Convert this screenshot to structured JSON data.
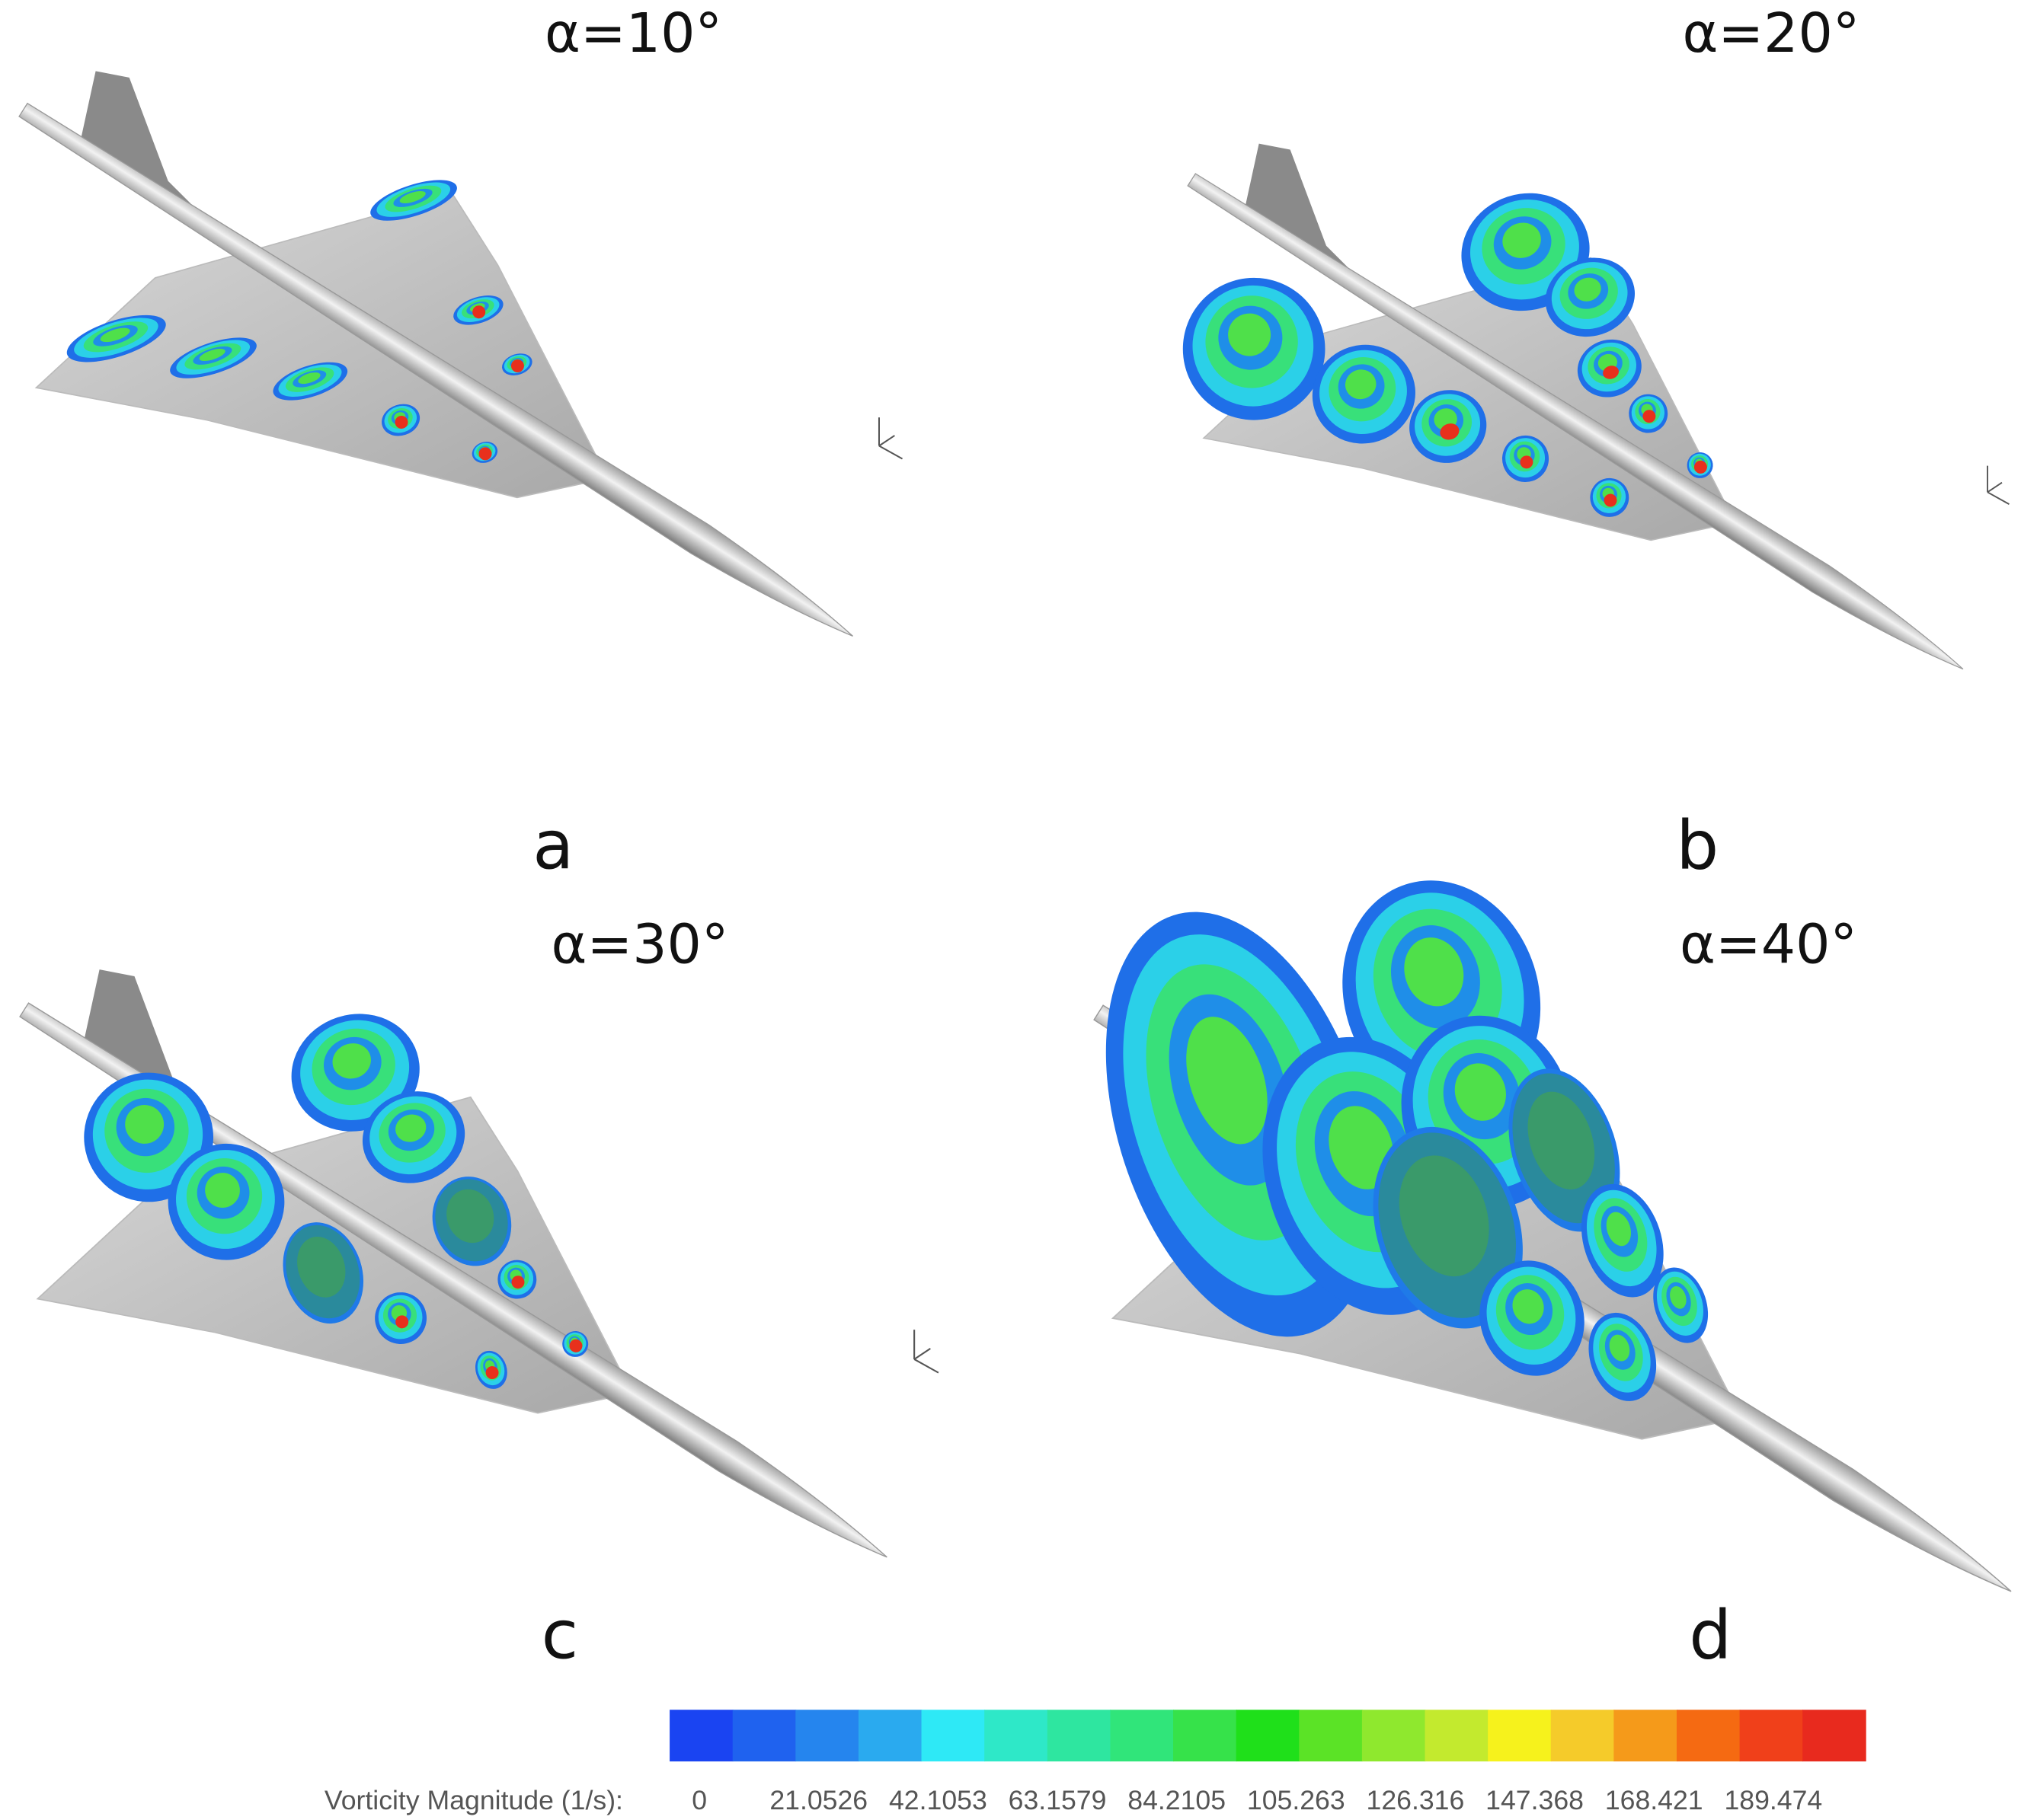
{
  "panels": [
    {
      "angle": "α=10°",
      "label": "a"
    },
    {
      "angle": "α=20°",
      "label": "b"
    },
    {
      "angle": "α=30°",
      "label": "c"
    },
    {
      "angle": "α=40°",
      "label": "d"
    }
  ],
  "colorbar": {
    "title": "Vorticity Magnitude (1/s):",
    "ticks": [
      "0",
      "21.0526",
      "42.1053",
      "63.1579",
      "84.2105",
      "105.263",
      "126.316",
      "147.368",
      "168.421",
      "189.474"
    ],
    "colors": [
      "#1a44f2",
      "#1f62ef",
      "#2585ee",
      "#2aaaef",
      "#2ee9f6",
      "#2ee8c8",
      "#2ee6a0",
      "#30e57a",
      "#36e24a",
      "#1fe01a",
      "#5be326",
      "#8fe82e",
      "#c3ea2e",
      "#f6f21c",
      "#f5cb2a",
      "#f59a1a",
      "#f56a12",
      "#f0401a",
      "#e82a1e"
    ]
  }
}
